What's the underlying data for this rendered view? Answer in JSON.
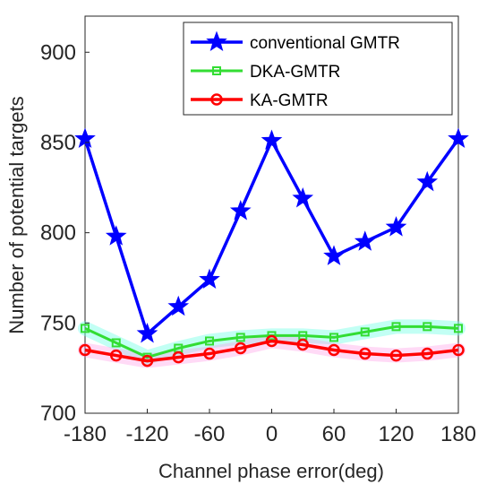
{
  "chart_data": {
    "type": "line",
    "xlabel": "Channel phase error(deg)",
    "ylabel": "Number of potential targets",
    "xlim": [
      -180,
      180
    ],
    "ylim": [
      700,
      920
    ],
    "xticks": [
      -180,
      -120,
      -60,
      0,
      60,
      120,
      180
    ],
    "yticks": [
      700,
      750,
      800,
      850,
      900
    ],
    "grid": false,
    "legend_position": "top-right",
    "x": [
      -180,
      -150,
      -120,
      -90,
      -60,
      -30,
      0,
      30,
      60,
      90,
      120,
      150,
      180
    ],
    "series": [
      {
        "name": "conventional GMTR",
        "color": "#0000ff",
        "marker": "star",
        "values": [
          852,
          798,
          744,
          759,
          774,
          812,
          851,
          819,
          787,
          795,
          803,
          828,
          852
        ]
      },
      {
        "name": "DKA-GMTR",
        "color": "#33dd33",
        "marker": "square",
        "values": [
          747,
          739,
          731,
          736,
          740,
          742,
          743,
          743,
          742,
          745,
          748,
          748,
          747
        ]
      },
      {
        "name": "KA-GMTR",
        "color": "#ff0000",
        "marker": "circle",
        "values": [
          735,
          732,
          729,
          731,
          733,
          736,
          740,
          738,
          735,
          733,
          732,
          733,
          735
        ]
      }
    ]
  }
}
